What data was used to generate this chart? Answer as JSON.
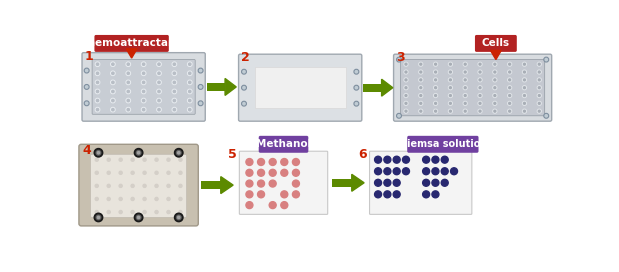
{
  "bg_color": "#ffffff",
  "step_numbers": [
    "1",
    "2",
    "3",
    "4",
    "5",
    "6"
  ],
  "step_number_color": "#cc2200",
  "arrow_color": "#5c8a00",
  "label_chemoattractants": "Chemoattractans",
  "label_cells": "Cells",
  "label_methanol": "Methanol",
  "label_giemsa": "Giemsa solution",
  "label_red_bg": "#b22222",
  "label_purple_bg": "#7040a0",
  "label_text_color": "#ffffff",
  "red_arrow_color": "#cc2200",
  "dot_pink": "#d88080",
  "dot_purple": "#282870",
  "plate1_bg": "#d8dce0",
  "plate1_border": "#a0a8b0",
  "plate2_bg": "#dce0e4",
  "plate3_bg": "#d4d8dc",
  "plate_dot_color": "#b8bcc4",
  "membrane_color": "#f0f0f0",
  "screw_color": "#909098",
  "screw_tip": "#c8ccd0",
  "photo_bg": "#c8c0b0",
  "photo_inner": "#e8e4dc",
  "photo_screw": "#1a1a1a",
  "photo_screw2": "#606060"
}
